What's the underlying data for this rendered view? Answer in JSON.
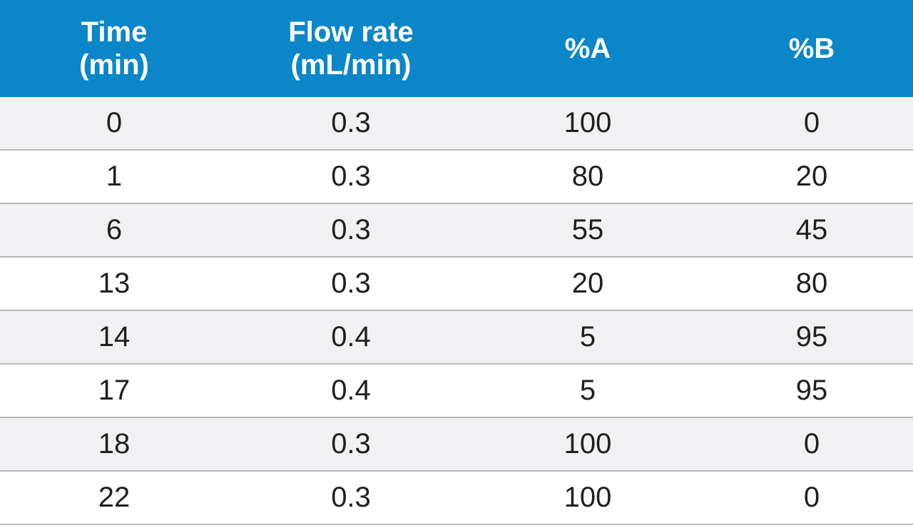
{
  "table": {
    "headers": [
      "Time\n(min)",
      "Flow rate\n(mL/min)",
      "%A",
      "%B"
    ],
    "rows": [
      [
        "0",
        "0.3",
        "100",
        "0"
      ],
      [
        "1",
        "0.3",
        "80",
        "20"
      ],
      [
        "6",
        "0.3",
        "55",
        "45"
      ],
      [
        "13",
        "0.3",
        "20",
        "80"
      ],
      [
        "14",
        "0.4",
        "5",
        "95"
      ],
      [
        "17",
        "0.4",
        "5",
        "95"
      ],
      [
        "18",
        "0.3",
        "100",
        "0"
      ],
      [
        "22",
        "0.3",
        "100",
        "0"
      ]
    ]
  },
  "colors": {
    "header_background": "#0a86c9",
    "header_text": "#ffffff",
    "row_alternate": "#f1f1f3",
    "row_plain": "#ffffff",
    "row_divider": "#b9b9bc",
    "body_text": "#1f1f1f"
  }
}
